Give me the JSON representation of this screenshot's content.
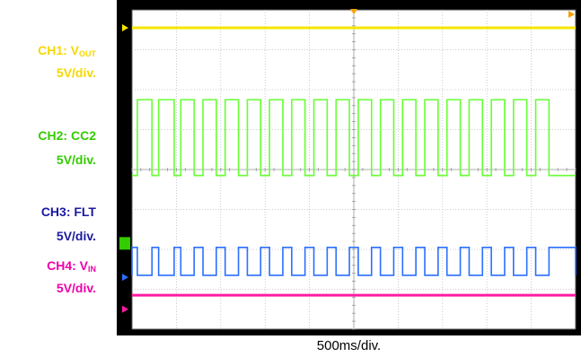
{
  "channels": [
    {
      "id": "CH1",
      "name": "V",
      "sub": "OUT",
      "scale": "5V/div.",
      "color": "#f5d800"
    },
    {
      "id": "CH2",
      "name": "CC2",
      "sub": "",
      "scale": "5V/div.",
      "color": "#33cc00"
    },
    {
      "id": "CH3",
      "name": "FLT",
      "sub": "",
      "scale": "5V/div.",
      "color": "#1a1aa0"
    },
    {
      "id": "CH4",
      "name": "V",
      "sub": "IN",
      "scale": "5V/div.",
      "color": "#ee00aa"
    }
  ],
  "chart_data": {
    "type": "line",
    "xlabel": "500ms/div.",
    "grid": true,
    "divisions": {
      "x": 10,
      "y": 8
    },
    "series": [
      {
        "name": "CH1: VOUT",
        "color": "#f5e600",
        "kind": "level",
        "level_div": 7.55
      },
      {
        "name": "CH2: CC2",
        "color": "#66ff33",
        "kind": "pulse",
        "low_div": 3.85,
        "high_div": 5.75,
        "pulses": [
          [
            0.12,
            0.45
          ],
          [
            0.6,
            0.95
          ],
          [
            1.1,
            1.4
          ],
          [
            1.6,
            1.9
          ],
          [
            2.1,
            2.4
          ],
          [
            2.6,
            2.9
          ],
          [
            3.1,
            3.4
          ],
          [
            3.6,
            3.9
          ],
          [
            4.1,
            4.4
          ],
          [
            4.6,
            4.9
          ],
          [
            5.1,
            5.4
          ],
          [
            5.6,
            5.9
          ],
          [
            6.1,
            6.4
          ],
          [
            6.6,
            6.9
          ],
          [
            7.1,
            7.4
          ],
          [
            7.6,
            7.9
          ],
          [
            8.1,
            8.4
          ],
          [
            8.6,
            8.9
          ],
          [
            9.1,
            9.4
          ]
        ]
      },
      {
        "name": "CH3: FLT",
        "color": "#2b6fff",
        "kind": "pulse",
        "low_div": 1.35,
        "high_div": 2.05,
        "pulses": [
          [
            -0.1,
            0.12
          ],
          [
            0.45,
            0.6
          ],
          [
            0.95,
            1.1
          ],
          [
            1.4,
            1.6
          ],
          [
            1.9,
            2.1
          ],
          [
            2.4,
            2.6
          ],
          [
            2.9,
            3.1
          ],
          [
            3.4,
            3.6
          ],
          [
            3.9,
            4.1
          ],
          [
            4.4,
            4.6
          ],
          [
            4.9,
            5.1
          ],
          [
            5.4,
            5.6
          ],
          [
            5.9,
            6.1
          ],
          [
            6.4,
            6.6
          ],
          [
            6.9,
            7.1
          ],
          [
            7.4,
            7.6
          ],
          [
            7.9,
            8.1
          ],
          [
            8.4,
            8.6
          ],
          [
            8.9,
            9.1
          ],
          [
            9.4,
            10
          ]
        ]
      },
      {
        "name": "CH4: VIN",
        "color": "#ff1aa3",
        "kind": "level",
        "level_div": 0.85
      }
    ]
  }
}
